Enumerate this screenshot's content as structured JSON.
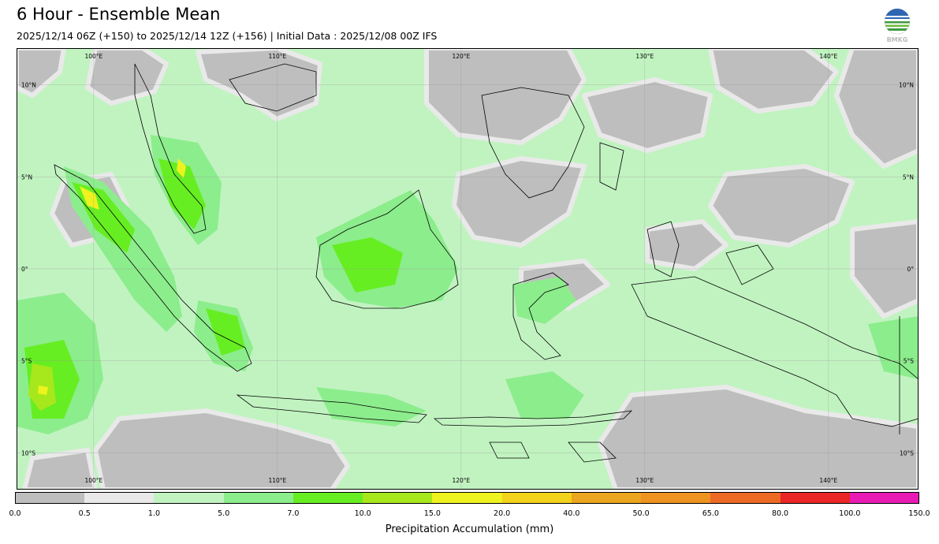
{
  "title": "6 Hour - Ensemble Mean",
  "subtitle": "2025/12/14 06Z (+150) to 2025/12/14 12Z (+156) | Initial Data : 2025/12/08 00Z IFS",
  "logo": {
    "icon": "bmkg-logo-icon",
    "text": "BMKG"
  },
  "map": {
    "lon_labels": [
      "100°E",
      "110°E",
      "120°E",
      "130°E",
      "140°E"
    ],
    "lat_labels": [
      "10°N",
      "5°N",
      "0°",
      "5°S",
      "10°S"
    ],
    "lon_range": [
      95.8,
      144.9
    ],
    "lat_range": [
      -12.0,
      12.0
    ]
  },
  "colorbar": {
    "label": "Precipitation Accumulation (mm)",
    "ticks": [
      "0.0",
      "0.5",
      "1.0",
      "5.0",
      "7.0",
      "10.0",
      "15.0",
      "20.0",
      "40.0",
      "50.0",
      "65.0",
      "80.0",
      "100.0",
      "150.0"
    ],
    "colors": [
      "#bebebe",
      "#e9e9e9",
      "#c1f3c1",
      "#8ced8c",
      "#66ee22",
      "#a6e81c",
      "#eef21e",
      "#f2d21a",
      "#eca51e",
      "#ee9220",
      "#ec6a24",
      "#ea2626",
      "#e81cb4"
    ]
  }
}
